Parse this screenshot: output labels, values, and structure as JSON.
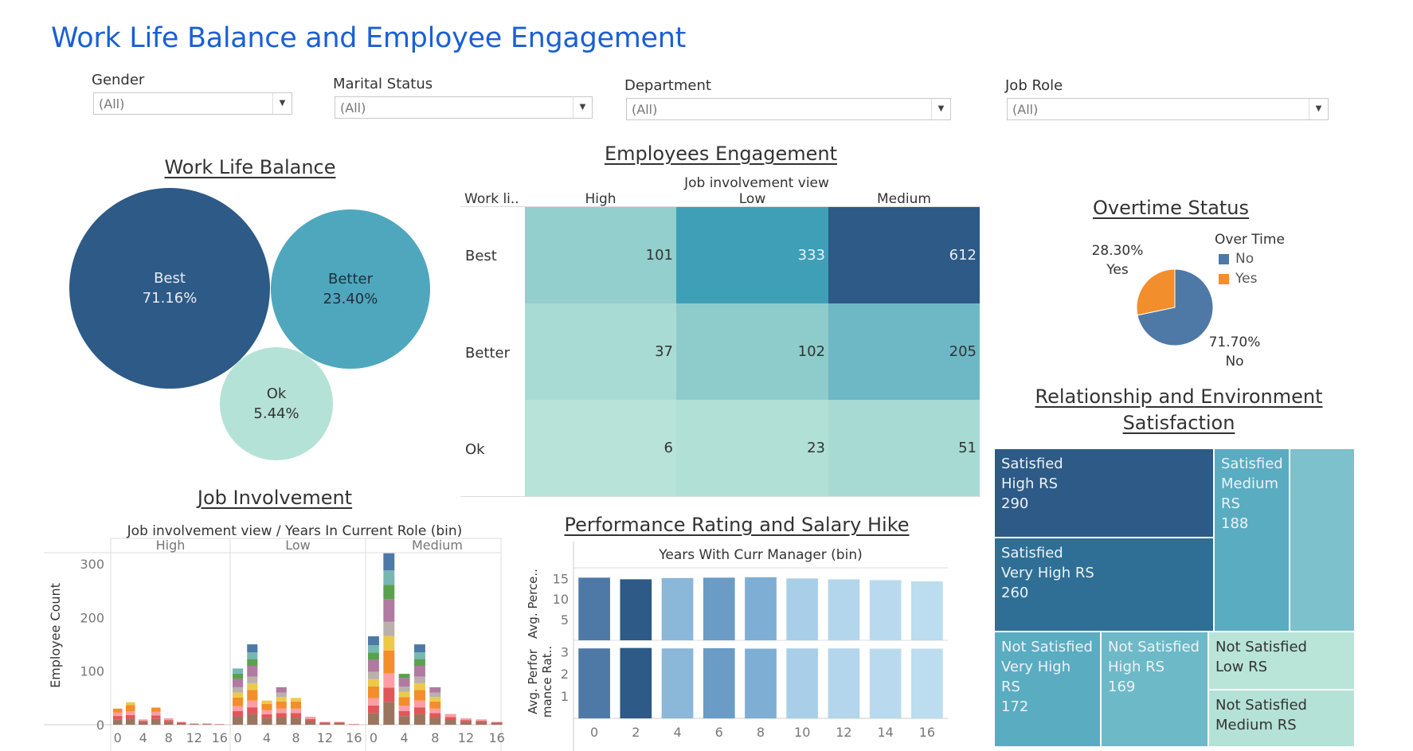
{
  "dashboard": {
    "title": "Work Life Balance and Employee Engagement"
  },
  "filters": [
    {
      "label": "Gender",
      "value": "(All)"
    },
    {
      "label": "Marital Status",
      "value": "(All)"
    },
    {
      "label": "Department",
      "value": "(All)"
    },
    {
      "label": "Job Role",
      "value": "(All)"
    }
  ],
  "wlb": {
    "title": "Work Life Balance",
    "bubbles": [
      {
        "label": "Best",
        "pct": "71.16%",
        "color": "#2d5a86"
      },
      {
        "label": "Better",
        "pct": "23.40%",
        "color": "#4ea7bd"
      },
      {
        "label": "Ok",
        "pct": "5.44%",
        "color": "#b5e2d6"
      }
    ]
  },
  "engagement": {
    "title": "Employees Engagement",
    "col_title": "Job involvement view",
    "row_header": "Work li..",
    "columns": [
      "High",
      "Low",
      "Medium"
    ],
    "rows": [
      {
        "label": "Best",
        "values": [
          "101",
          "333",
          "612"
        ]
      },
      {
        "label": "Better",
        "values": [
          "37",
          "102",
          "205"
        ]
      },
      {
        "label": "Ok",
        "values": [
          "6",
          "23",
          "51"
        ]
      }
    ],
    "colors": [
      [
        "#93cfcc",
        "#3f9fb7",
        "#2d5a86"
      ],
      [
        "#a8dbd3",
        "#8ecccb",
        "#6eb8c6"
      ],
      [
        "#b7e3d8",
        "#b0e0d6",
        "#a6dad2"
      ]
    ]
  },
  "overtime": {
    "title": "Overtime Status",
    "legend_title": "Over Time",
    "legend": [
      {
        "label": "No",
        "color": "#4e79a7"
      },
      {
        "label": "Yes",
        "color": "#f28e2b"
      }
    ],
    "yes_pct": "28.30%",
    "yes_label": "Yes",
    "no_pct": "71.70%",
    "no_label": "No"
  },
  "relationship": {
    "title_line1": "Relationship and Environment",
    "title_line2": "Satisfaction",
    "tiles": [
      {
        "l1": "Satisfied",
        "l2": "High RS",
        "l3": "290",
        "color": "#2d5a86"
      },
      {
        "l1": "Satisfied",
        "l2": "Very High RS",
        "l3": "260",
        "color": "#2f6f96"
      },
      {
        "l1": "Satisfied",
        "l2": "Medium",
        "l3": "RS",
        "l4": "188",
        "color": "#5aacc1"
      },
      {
        "l1": "",
        "color": "#7cc1cb"
      },
      {
        "l1": "Not Satisfied",
        "l2": "Very High RS",
        "l3": "172",
        "color": "#5aacc1"
      },
      {
        "l1": "Not Satisfied",
        "l2": "High RS",
        "l3": "169",
        "color": "#6db9c7"
      },
      {
        "l1": "Not Satisfied",
        "l2": "Low RS",
        "color": "#b9e4d8"
      },
      {
        "l1": "Not Satisfied",
        "l2": "Medium RS",
        "color": "#b5e2d6"
      }
    ]
  },
  "job_involvement": {
    "title": "Job Involvement",
    "header": "Job involvement view  /  Years In Current Role (bin)",
    "panels": [
      "High",
      "Low",
      "Medium"
    ],
    "ylabel": "Employee Count",
    "yticks": [
      "300",
      "200",
      "100",
      "0"
    ],
    "xticks": [
      "0",
      "4",
      "8",
      "12",
      "16"
    ]
  },
  "performance": {
    "title": "Performance Rating and Salary Hike",
    "header": "Years With Curr Manager (bin)",
    "ylabel_top": "Avg. Perce..",
    "ylabel_bottom_1": "Avg. Perfor",
    "ylabel_bottom_2": "mance Rat..",
    "yticks_top": [
      "15",
      "10",
      "5"
    ],
    "yticks_bottom": [
      "3",
      "2",
      "1"
    ],
    "xticks": [
      "0",
      "2",
      "4",
      "6",
      "8",
      "10",
      "12",
      "14",
      "16"
    ]
  },
  "chart_data": [
    {
      "type": "bubble",
      "title": "Work Life Balance",
      "categories": [
        "Best",
        "Better",
        "Ok"
      ],
      "values": [
        71.16,
        23.4,
        5.44
      ]
    },
    {
      "type": "heatmap",
      "title": "Employees Engagement",
      "x": [
        "High",
        "Low",
        "Medium"
      ],
      "y": [
        "Best",
        "Better",
        "Ok"
      ],
      "values": [
        [
          101,
          333,
          612
        ],
        [
          37,
          102,
          205
        ],
        [
          6,
          23,
          51
        ]
      ]
    },
    {
      "type": "pie",
      "title": "Overtime Status",
      "categories": [
        "No",
        "Yes"
      ],
      "values": [
        71.7,
        28.3
      ]
    },
    {
      "type": "bar",
      "title": "Job Involvement",
      "xlabel": "Years In Current Role (bin)",
      "ylabel": "Employee Count",
      "ylim": [
        0,
        330
      ],
      "panels": [
        {
          "name": "High",
          "categories": [
            0,
            2,
            4,
            6,
            8,
            10,
            12,
            14,
            16
          ],
          "values": [
            30,
            42,
            10,
            32,
            12,
            5,
            2,
            2,
            1
          ]
        },
        {
          "name": "Low",
          "categories": [
            0,
            2,
            4,
            6,
            8,
            10,
            12,
            14,
            16
          ],
          "values": [
            105,
            150,
            45,
            70,
            50,
            15,
            5,
            5,
            1
          ]
        },
        {
          "name": "Medium",
          "categories": [
            0,
            2,
            4,
            6,
            8,
            10,
            12,
            14,
            16
          ],
          "values": [
            165,
            320,
            95,
            150,
            70,
            20,
            12,
            10,
            5
          ]
        }
      ]
    },
    {
      "type": "bar",
      "title": "Performance Rating and Salary Hike",
      "xlabel": "Years With Curr Manager (bin)",
      "categories": [
        0,
        2,
        4,
        6,
        8,
        10,
        12,
        14,
        16
      ],
      "series": [
        {
          "name": "Avg. Perce..",
          "values": [
            15.2,
            14.8,
            15.1,
            15.2,
            15.3,
            15.0,
            14.8,
            14.6,
            14.3
          ],
          "ylim": [
            0,
            17
          ]
        },
        {
          "name": "Avg. Performance Rat..",
          "values": [
            3.15,
            3.17,
            3.15,
            3.16,
            3.14,
            3.15,
            3.15,
            3.14,
            3.14
          ],
          "ylim": [
            0,
            3.3
          ]
        }
      ],
      "colors": [
        "#4e79a7",
        "#2d5a86",
        "#8bb7d8",
        "#6a9cc6",
        "#7eaed4",
        "#a9cfe8",
        "#b4d6ec",
        "#b9daee",
        "#bcdcef"
      ]
    },
    {
      "type": "treemap",
      "title": "Relationship and Environment Satisfaction",
      "categories": [
        "Satisfied High RS",
        "Satisfied Very High RS",
        "Satisfied Medium RS",
        "Not Satisfied Very High RS",
        "Not Satisfied High RS",
        "Not Satisfied Low RS",
        "Not Satisfied Medium RS"
      ],
      "values": [
        290,
        260,
        188,
        172,
        169,
        null,
        null
      ]
    }
  ]
}
